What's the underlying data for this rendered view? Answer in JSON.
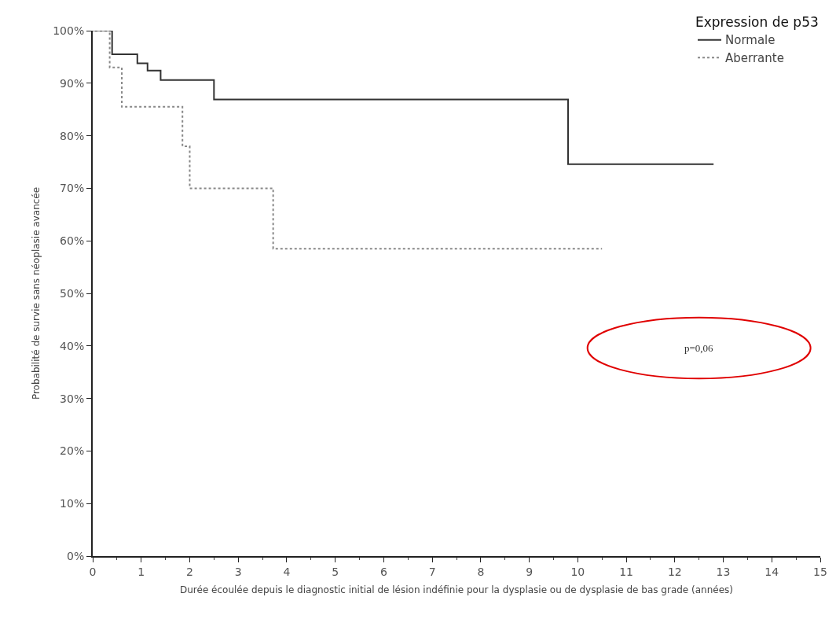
{
  "chart_data": {
    "type": "step",
    "xlabel": "Durée écoulée depuis le diagnostic initial de lésion indéfinie pour la dysplasie ou de dysplasie de bas grade (années)",
    "ylabel": "Probabilité de survie sans néoplasie avancée",
    "legend_title": "Expression de p53",
    "legend": "top right",
    "grid": false,
    "marker": "none",
    "xlim": [
      0,
      15
    ],
    "xticks": [
      0,
      1,
      2,
      3,
      4,
      5,
      6,
      7,
      8,
      9,
      10,
      11,
      12,
      13,
      14,
      15
    ],
    "ylim": [
      0,
      100
    ],
    "yticks": [
      {
        "value": 0,
        "label": "0%"
      },
      {
        "value": 10,
        "label": "10%"
      },
      {
        "value": 20,
        "label": "20%"
      },
      {
        "value": 30,
        "label": "30%"
      },
      {
        "value": 40,
        "label": "40%"
      },
      {
        "value": 50,
        "label": "50%"
      },
      {
        "value": 60,
        "label": "60%"
      },
      {
        "value": 70,
        "label": "70%"
      },
      {
        "value": 80,
        "label": "80%"
      },
      {
        "value": 90,
        "label": "90%"
      },
      {
        "value": 100,
        "label": "100%"
      }
    ],
    "series": [
      {
        "name": "Normale",
        "color": "#333333",
        "line_style": "solid",
        "x": [
          0,
          0.4,
          0.92,
          1.13,
          1.4,
          2.5,
          9.8,
          12.8
        ],
        "values": [
          100,
          95.5,
          93.8,
          92.4,
          90.6,
          86.9,
          74.6,
          74.6
        ]
      },
      {
        "name": "Aberrante",
        "color": "#888888",
        "line_style": "dotted",
        "x": [
          0,
          0.35,
          0.6,
          1.85,
          2.0,
          3.72,
          10.5
        ],
        "values": [
          100,
          93,
          85.5,
          78,
          70,
          58.5,
          58.5
        ]
      }
    ],
    "annotations": [
      "p=0,06"
    ]
  }
}
